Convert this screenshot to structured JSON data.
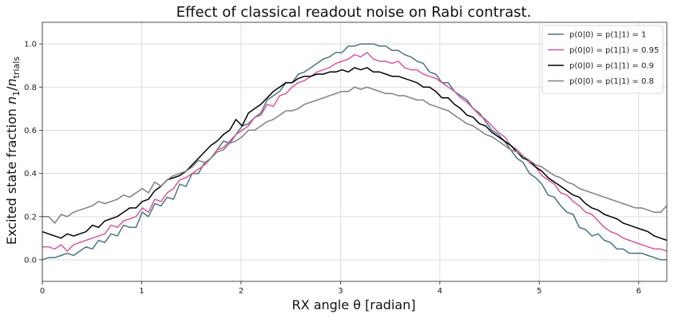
{
  "chart_data": {
    "type": "line",
    "title": "Effect of classical readout noise on Rabi contrast.",
    "xlabel": "RX angle θ [radian]",
    "ylabel_main": "Excited state fraction ",
    "ylabel_math": "n",
    "ylabel_sub1": "1",
    "ylabel_slash": "/",
    "ylabel_sub2": "trials",
    "xlim": [
      0,
      6.2832
    ],
    "ylim": [
      -0.1,
      1.1
    ],
    "xticks": [
      0,
      1,
      2,
      3,
      4,
      5,
      6
    ],
    "yticks": [
      0.0,
      0.2,
      0.4,
      0.6,
      0.8,
      1.0
    ],
    "xtick_labels": [
      "0",
      "1",
      "2",
      "3",
      "4",
      "5",
      "6"
    ],
    "ytick_labels": [
      "0.0",
      "0.2",
      "0.4",
      "0.6",
      "0.8",
      "1.0"
    ],
    "grid": true,
    "legend_position": "top-right",
    "x_samples": 101,
    "series": [
      {
        "name": "p(0|0) = p(1|1) = 1",
        "color": "#4a7482",
        "values": [
          0.0,
          0.01,
          0.01,
          0.02,
          0.03,
          0.02,
          0.04,
          0.06,
          0.05,
          0.09,
          0.08,
          0.12,
          0.11,
          0.16,
          0.15,
          0.15,
          0.22,
          0.2,
          0.26,
          0.25,
          0.29,
          0.28,
          0.35,
          0.34,
          0.4,
          0.4,
          0.45,
          0.47,
          0.51,
          0.55,
          0.54,
          0.58,
          0.62,
          0.63,
          0.66,
          0.68,
          0.74,
          0.76,
          0.78,
          0.82,
          0.82,
          0.86,
          0.87,
          0.89,
          0.91,
          0.93,
          0.94,
          0.96,
          0.96,
          0.99,
          0.99,
          1.0,
          1.0,
          1.0,
          0.99,
          0.99,
          0.97,
          0.97,
          0.95,
          0.94,
          0.92,
          0.91,
          0.87,
          0.86,
          0.82,
          0.82,
          0.78,
          0.76,
          0.74,
          0.7,
          0.68,
          0.64,
          0.6,
          0.58,
          0.55,
          0.51,
          0.47,
          0.45,
          0.4,
          0.38,
          0.35,
          0.3,
          0.29,
          0.25,
          0.22,
          0.21,
          0.15,
          0.14,
          0.11,
          0.12,
          0.09,
          0.08,
          0.05,
          0.05,
          0.03,
          0.03,
          0.03,
          0.02,
          0.01,
          0.0,
          0.0
        ]
      },
      {
        "name": "p(0|0) = p(1|1) = 0.95",
        "color": "#d9579b",
        "values": [
          0.06,
          0.06,
          0.05,
          0.07,
          0.04,
          0.07,
          0.08,
          0.09,
          0.1,
          0.11,
          0.12,
          0.16,
          0.15,
          0.18,
          0.19,
          0.2,
          0.24,
          0.22,
          0.28,
          0.27,
          0.31,
          0.33,
          0.37,
          0.38,
          0.4,
          0.42,
          0.44,
          0.47,
          0.51,
          0.52,
          0.55,
          0.58,
          0.6,
          0.62,
          0.66,
          0.67,
          0.72,
          0.71,
          0.76,
          0.77,
          0.8,
          0.82,
          0.83,
          0.85,
          0.87,
          0.88,
          0.89,
          0.91,
          0.92,
          0.93,
          0.95,
          0.94,
          0.96,
          0.93,
          0.92,
          0.92,
          0.91,
          0.92,
          0.89,
          0.88,
          0.88,
          0.86,
          0.85,
          0.84,
          0.82,
          0.8,
          0.78,
          0.75,
          0.73,
          0.7,
          0.67,
          0.65,
          0.62,
          0.59,
          0.57,
          0.53,
          0.51,
          0.48,
          0.45,
          0.43,
          0.39,
          0.37,
          0.35,
          0.31,
          0.3,
          0.27,
          0.25,
          0.22,
          0.21,
          0.18,
          0.15,
          0.13,
          0.12,
          0.1,
          0.09,
          0.08,
          0.07,
          0.06,
          0.05,
          0.05,
          0.04
        ]
      },
      {
        "name": "p(0|0) = p(1|1) = 0.9",
        "color": "#000000",
        "values": [
          0.13,
          0.12,
          0.11,
          0.1,
          0.12,
          0.11,
          0.12,
          0.13,
          0.16,
          0.15,
          0.18,
          0.19,
          0.2,
          0.22,
          0.24,
          0.24,
          0.27,
          0.28,
          0.32,
          0.34,
          0.37,
          0.38,
          0.39,
          0.41,
          0.44,
          0.47,
          0.5,
          0.53,
          0.55,
          0.58,
          0.6,
          0.65,
          0.62,
          0.68,
          0.7,
          0.72,
          0.75,
          0.78,
          0.8,
          0.82,
          0.82,
          0.84,
          0.85,
          0.85,
          0.86,
          0.86,
          0.87,
          0.87,
          0.88,
          0.87,
          0.89,
          0.88,
          0.89,
          0.87,
          0.87,
          0.86,
          0.85,
          0.85,
          0.84,
          0.83,
          0.82,
          0.8,
          0.8,
          0.78,
          0.75,
          0.75,
          0.72,
          0.7,
          0.67,
          0.66,
          0.63,
          0.62,
          0.59,
          0.57,
          0.55,
          0.53,
          0.5,
          0.47,
          0.46,
          0.43,
          0.41,
          0.38,
          0.36,
          0.34,
          0.32,
          0.3,
          0.29,
          0.26,
          0.24,
          0.23,
          0.21,
          0.2,
          0.19,
          0.17,
          0.16,
          0.15,
          0.14,
          0.13,
          0.11,
          0.1,
          0.09
        ]
      },
      {
        "name": "p(0|0) = p(1|1) = 0.8",
        "color": "#808080",
        "values": [
          0.2,
          0.2,
          0.17,
          0.21,
          0.2,
          0.22,
          0.23,
          0.24,
          0.25,
          0.27,
          0.26,
          0.27,
          0.28,
          0.3,
          0.29,
          0.31,
          0.33,
          0.31,
          0.36,
          0.34,
          0.37,
          0.39,
          0.4,
          0.41,
          0.43,
          0.46,
          0.45,
          0.47,
          0.5,
          0.51,
          0.54,
          0.55,
          0.57,
          0.6,
          0.6,
          0.62,
          0.64,
          0.65,
          0.67,
          0.69,
          0.69,
          0.7,
          0.72,
          0.73,
          0.74,
          0.75,
          0.76,
          0.77,
          0.78,
          0.78,
          0.8,
          0.79,
          0.8,
          0.79,
          0.78,
          0.77,
          0.77,
          0.76,
          0.76,
          0.75,
          0.74,
          0.74,
          0.72,
          0.71,
          0.7,
          0.69,
          0.67,
          0.65,
          0.63,
          0.62,
          0.6,
          0.58,
          0.57,
          0.55,
          0.53,
          0.51,
          0.5,
          0.48,
          0.46,
          0.44,
          0.43,
          0.41,
          0.39,
          0.38,
          0.36,
          0.35,
          0.33,
          0.32,
          0.31,
          0.3,
          0.29,
          0.28,
          0.27,
          0.26,
          0.25,
          0.24,
          0.24,
          0.23,
          0.22,
          0.22,
          0.25
        ]
      }
    ]
  }
}
